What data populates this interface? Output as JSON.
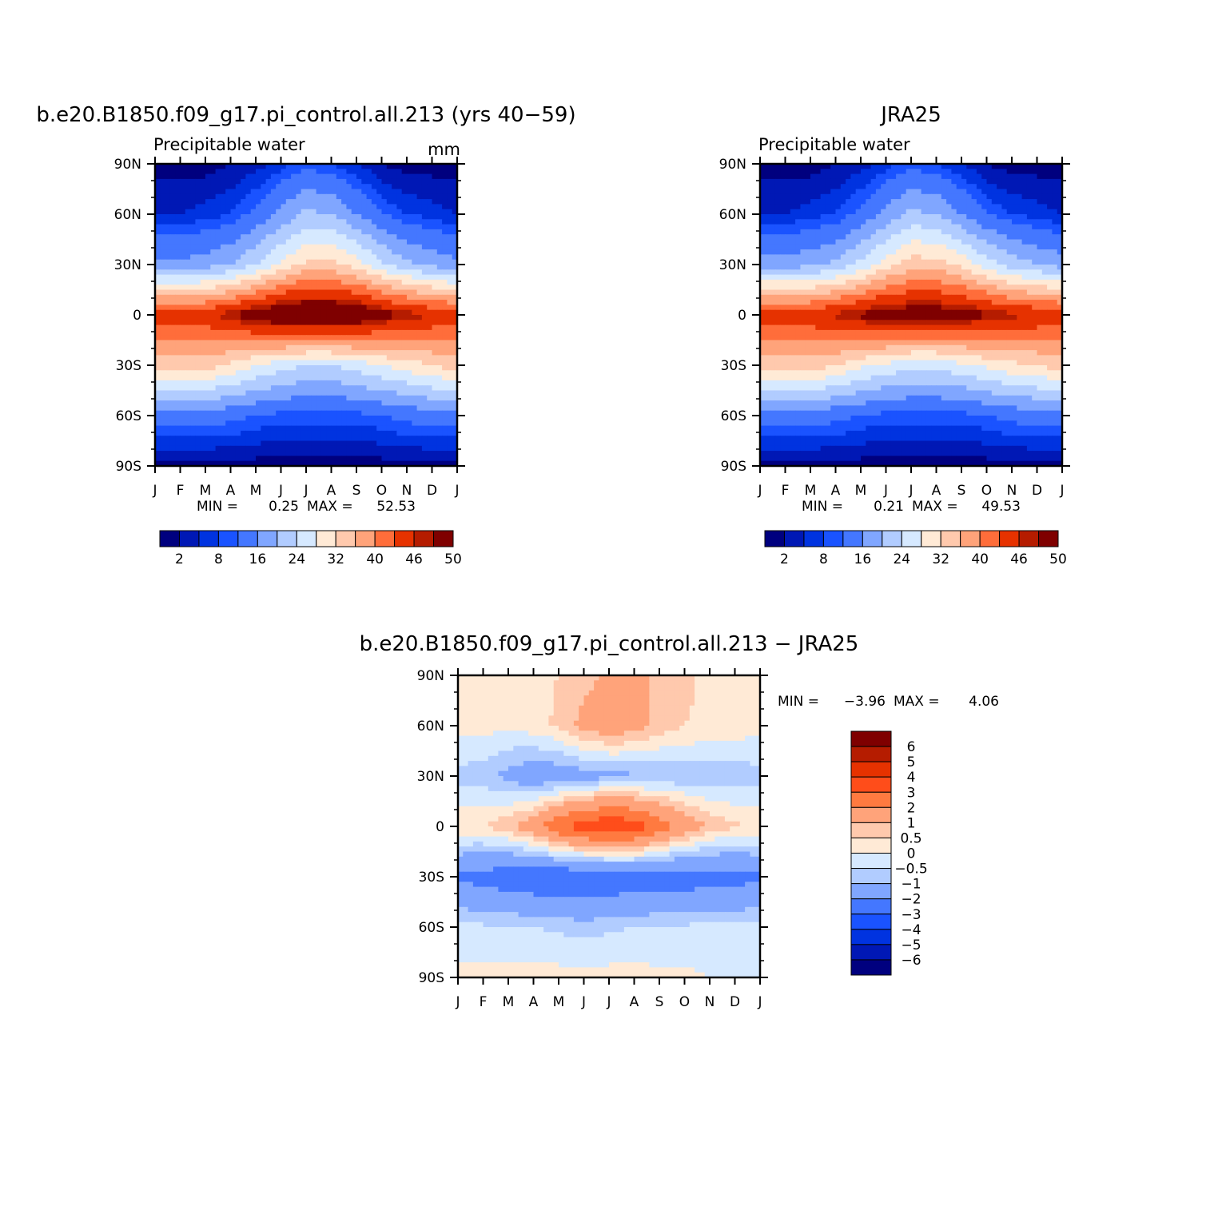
{
  "panels": [
    {
      "id": "model",
      "title": "b.e20.B1850.f09_g17.pi_control.all.213 (yrs 40-59)",
      "left_label": "Precipitable water",
      "right_label": "mm",
      "stats": {
        "min_label": "MIN =",
        "min": "0.25",
        "max_label": "MAX =",
        "max": "52.53"
      }
    },
    {
      "id": "obs",
      "title": "JRA25",
      "left_label": "Precipitable water",
      "right_label": "",
      "stats": {
        "min_label": "MIN =",
        "min": "0.21",
        "max_label": "MAX =",
        "max": "49.53"
      }
    },
    {
      "id": "diff",
      "title": "b.e20.B1850.f09_g17.pi_control.all.213 - JRA25",
      "left_label": "",
      "right_label": "",
      "stats": {
        "min_label": "MIN =",
        "min": "-3.96",
        "max_label": "MAX =",
        "max": "4.06"
      }
    }
  ],
  "axes": {
    "x_ticks": [
      "J",
      "F",
      "M",
      "A",
      "M",
      "J",
      "J",
      "A",
      "S",
      "O",
      "N",
      "D",
      "J"
    ],
    "y_ticks": [
      "90N",
      "60N",
      "30N",
      "0",
      "30S",
      "60S",
      "90S"
    ],
    "y_values": [
      90,
      60,
      30,
      0,
      -30,
      -60,
      -90
    ],
    "ylim": [
      -90,
      90
    ]
  },
  "colorbars": {
    "abs": {
      "colors": [
        "#00007f",
        "#0018b5",
        "#0033e0",
        "#1a53ff",
        "#4477ff",
        "#80a6ff",
        "#b1ccff",
        "#d6e9ff",
        "#ffead6",
        "#ffc9ad",
        "#ffa37a",
        "#ff6d3a",
        "#e63200",
        "#b51c00",
        "#7f0000"
      ],
      "labels": [
        "2",
        "8",
        "16",
        "24",
        "32",
        "40",
        "46",
        "50"
      ]
    },
    "diff": {
      "colors": [
        "#7f0000",
        "#b51c00",
        "#e63200",
        "#ff4d1a",
        "#ff7a40",
        "#ffa37a",
        "#ffc9ad",
        "#ffead6",
        "#d6e9ff",
        "#b1ccff",
        "#80a6ff",
        "#4477ff",
        "#1a53ff",
        "#0033e0",
        "#0018b5",
        "#00007f"
      ],
      "labels": [
        "6",
        "5",
        "4",
        "3",
        "2",
        "1",
        "0.5",
        "0",
        "-0.5",
        "-1",
        "-2",
        "-3",
        "-4",
        "-5",
        "-6"
      ]
    }
  },
  "chart_data": [
    {
      "type": "heatmap",
      "title": "b.e20.B1850.f09_g17.pi_control.all.213 (yrs 40-59)",
      "variable": "Precipitable water",
      "units": "mm",
      "x": [
        "J",
        "F",
        "M",
        "A",
        "M",
        "J",
        "J",
        "A",
        "S",
        "O",
        "N",
        "D",
        "J"
      ],
      "y": [
        90,
        60,
        30,
        0,
        -30,
        -60,
        -90
      ],
      "levels": [
        2,
        4,
        6,
        8,
        12,
        16,
        20,
        24,
        28,
        32,
        36,
        40,
        44,
        46,
        48,
        50
      ],
      "values": [
        [
          1,
          1,
          1,
          2,
          3,
          5,
          7,
          6,
          4,
          2,
          1,
          1,
          1
        ],
        [
          4,
          4,
          5,
          6,
          9,
          13,
          17,
          16,
          12,
          8,
          6,
          5,
          4
        ],
        [
          13,
          13,
          14,
          16,
          20,
          25,
          29,
          29,
          26,
          21,
          17,
          15,
          13
        ],
        [
          43,
          43,
          43,
          46,
          49,
          51,
          52,
          52,
          51,
          48,
          46,
          44,
          43
        ],
        [
          30,
          30,
          30,
          27,
          24,
          22,
          20,
          20,
          22,
          24,
          26,
          28,
          30
        ],
        [
          10,
          10,
          10,
          9,
          8,
          7,
          7,
          7,
          7,
          8,
          9,
          10,
          10
        ],
        [
          1,
          1,
          1,
          1,
          1,
          0.5,
          0.5,
          0.5,
          0.5,
          1,
          1,
          1,
          1
        ]
      ],
      "min": 0.25,
      "max": 52.53
    },
    {
      "type": "heatmap",
      "title": "JRA25",
      "variable": "Precipitable water",
      "x": [
        "J",
        "F",
        "M",
        "A",
        "M",
        "J",
        "J",
        "A",
        "S",
        "O",
        "N",
        "D",
        "J"
      ],
      "y": [
        90,
        60,
        30,
        0,
        -30,
        -60,
        -90
      ],
      "levels": [
        2,
        4,
        6,
        8,
        12,
        16,
        20,
        24,
        28,
        32,
        36,
        40,
        44,
        46,
        48,
        50
      ],
      "values": [
        [
          1,
          1,
          1,
          2,
          3,
          5,
          7,
          6,
          4,
          2,
          1,
          1,
          1
        ],
        [
          4,
          4,
          5,
          6,
          9,
          13,
          17,
          16,
          12,
          8,
          6,
          5,
          4
        ],
        [
          14,
          14,
          15,
          17,
          21,
          26,
          30,
          30,
          27,
          22,
          18,
          16,
          14
        ],
        [
          43,
          43,
          43,
          45,
          47,
          49,
          49,
          49,
          48,
          47,
          45,
          44,
          43
        ],
        [
          30,
          30,
          30,
          28,
          25,
          23,
          21,
          21,
          23,
          25,
          27,
          28,
          30
        ],
        [
          10,
          10,
          10,
          9,
          8,
          7,
          7,
          7,
          7,
          8,
          9,
          10,
          10
        ],
        [
          1,
          1,
          1,
          1,
          1,
          0.5,
          0.5,
          0.5,
          0.5,
          1,
          1,
          1,
          1
        ]
      ],
      "min": 0.21,
      "max": 49.53
    },
    {
      "type": "heatmap",
      "title": "b.e20.B1850.f09_g17.pi_control.all.213 - JRA25",
      "x": [
        "J",
        "F",
        "M",
        "A",
        "M",
        "J",
        "J",
        "A",
        "S",
        "O",
        "N",
        "D",
        "J"
      ],
      "y": [
        90,
        60,
        30,
        0,
        -30,
        -60,
        -90
      ],
      "levels": [
        -6,
        -5,
        -4,
        -3,
        -2,
        -1,
        -0.5,
        0,
        0.5,
        1,
        2,
        3,
        4,
        5,
        6
      ],
      "values": [
        [
          0.3,
          0.3,
          0.3,
          0.4,
          0.5,
          0.8,
          1.1,
          1.2,
          0.9,
          0.6,
          0.4,
          0.3,
          0.3
        ],
        [
          0.2,
          0.2,
          0.1,
          0.3,
          0.6,
          1.2,
          1.5,
          1.3,
          0.8,
          0.5,
          0.4,
          0.3,
          0.2
        ],
        [
          -0.7,
          -0.8,
          -1.2,
          -1.6,
          -1.5,
          -1.3,
          -1.2,
          -1.1,
          -1.0,
          -0.9,
          -0.8,
          -0.8,
          -0.7
        ],
        [
          0.4,
          0.5,
          0.9,
          1.6,
          2.8,
          3.6,
          3.9,
          3.6,
          2.6,
          1.6,
          0.9,
          0.6,
          0.4
        ],
        [
          -2.1,
          -2.4,
          -2.6,
          -2.8,
          -2.9,
          -2.9,
          -2.8,
          -2.7,
          -2.7,
          -2.6,
          -2.5,
          -2.4,
          -2.1
        ],
        [
          -0.3,
          -0.4,
          -0.4,
          -0.5,
          -0.6,
          -0.7,
          -0.6,
          -0.5,
          -0.4,
          -0.4,
          -0.3,
          -0.3,
          -0.3
        ],
        [
          0.1,
          0.2,
          0.2,
          0.2,
          0.2,
          0.2,
          0.2,
          0.2,
          0.1,
          0.1,
          0.0,
          -0.1,
          -0.1
        ]
      ],
      "min": -3.96,
      "max": 4.06
    }
  ]
}
